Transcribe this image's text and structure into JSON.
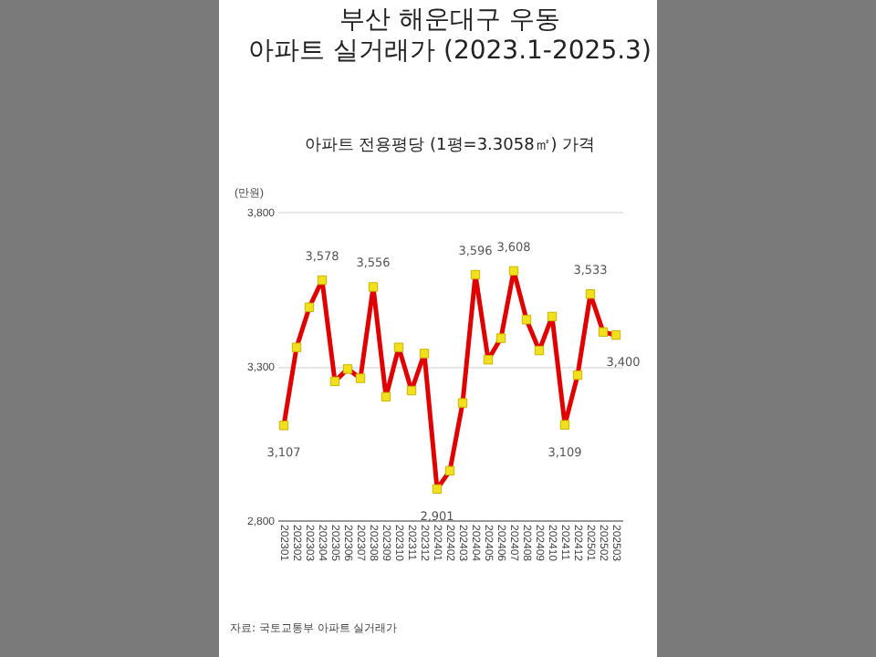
{
  "chart_data": {
    "type": "line",
    "title": "부산 해운대구 우동\n아파트 실거래가 (2023.1-2025.3)",
    "subtitle": "아파트 전용평당 (1평=3.3058㎡) 가격",
    "ylabel": "(만원)",
    "categories": [
      "202301",
      "202302",
      "202303",
      "202304",
      "202305",
      "202306",
      "202307",
      "202308",
      "202309",
      "202310",
      "202311",
      "202312",
      "202401",
      "202402",
      "202403",
      "202404",
      "202405",
      "202406",
      "202407",
      "202408",
      "202409",
      "202410",
      "202411",
      "202412",
      "202501",
      "202502",
      "202503"
    ],
    "series": [
      {
        "color": "#e00000",
        "values": [
          3107,
          3360,
          3490,
          3578,
          3250,
          3290,
          3260,
          3556,
          3200,
          3360,
          3220,
          3340,
          2901,
          2960,
          3180,
          3596,
          3320,
          3390,
          3608,
          3450,
          3350,
          3460,
          3109,
          3270,
          3533,
          3410,
          3400
        ],
        "value_labels": [
          "3,107",
          null,
          null,
          "3,578",
          null,
          null,
          null,
          "3,556",
          null,
          null,
          null,
          null,
          "2,901",
          null,
          null,
          "3,596",
          null,
          null,
          "3,608",
          null,
          null,
          null,
          "3,109",
          null,
          "3,533",
          null,
          "3,400"
        ]
      }
    ],
    "ylim": [
      2800,
      3800
    ],
    "yticks": [
      {
        "value": 2800,
        "label": "2,800"
      },
      {
        "value": 3300,
        "label": "3,300"
      },
      {
        "value": 3800,
        "label": "3,800"
      }
    ],
    "grid": "y",
    "marker": "square",
    "line_style": "solid",
    "annotations": [
      "자료: 국토교통부 아파트 실거래가"
    ]
  }
}
